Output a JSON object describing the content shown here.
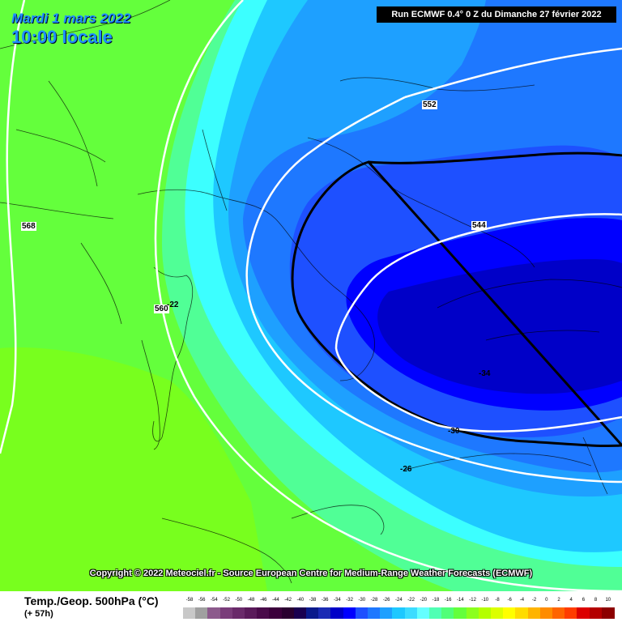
{
  "header": {
    "date": "Mardi 1 mars 2022",
    "time": "10:00 locale",
    "run": "Run ECMWF 0.4° 0 Z du Dimanche 27 février 2022"
  },
  "copyright": "Copyright © 2022 Meteociel.fr - Source European Centre for Medium-Range Weather Forecasts (ECMWF)",
  "legend": {
    "title": "Temp./Geop. 500hPa (°C)",
    "subtitle": "(+ 57h)",
    "ticks": [
      "-58",
      "-56",
      "-54",
      "-52",
      "-50",
      "-48",
      "-46",
      "-44",
      "-42",
      "-40",
      "-38",
      "-36",
      "-34",
      "-32",
      "-30",
      "-28",
      "-26",
      "-24",
      "-22",
      "-20",
      "-18",
      "-16",
      "-14",
      "-12",
      "-10",
      "-8",
      "-6",
      "-4",
      "-2",
      "0",
      "2",
      "4",
      "6",
      "8",
      "10"
    ],
    "colors": [
      "#c8c8c8",
      "#a0a0a0",
      "#8c5a8c",
      "#7a3c7a",
      "#6a2a6a",
      "#5a1a5a",
      "#4a0a4a",
      "#3c003c",
      "#2a0030",
      "#1a0050",
      "#0a1a8c",
      "#1a2ab4",
      "#0000c8",
      "#0000ff",
      "#1e50ff",
      "#1e78ff",
      "#1ea0ff",
      "#1ec8ff",
      "#3cdcff",
      "#64ffff",
      "#50ffb4",
      "#50ff78",
      "#64ff3c",
      "#8cff1e",
      "#b4ff00",
      "#dcff00",
      "#ffff00",
      "#ffdc00",
      "#ffb400",
      "#ff8c00",
      "#ff6400",
      "#ff3c00",
      "#dc0000",
      "#b40000",
      "#8c0000"
    ]
  },
  "contour_labels": {
    "c552": "552",
    "c544": "544",
    "c568": "568",
    "c560": "560",
    "t22": "-22",
    "t34": "-34",
    "t30": "-30",
    "t26": "-26"
  }
}
